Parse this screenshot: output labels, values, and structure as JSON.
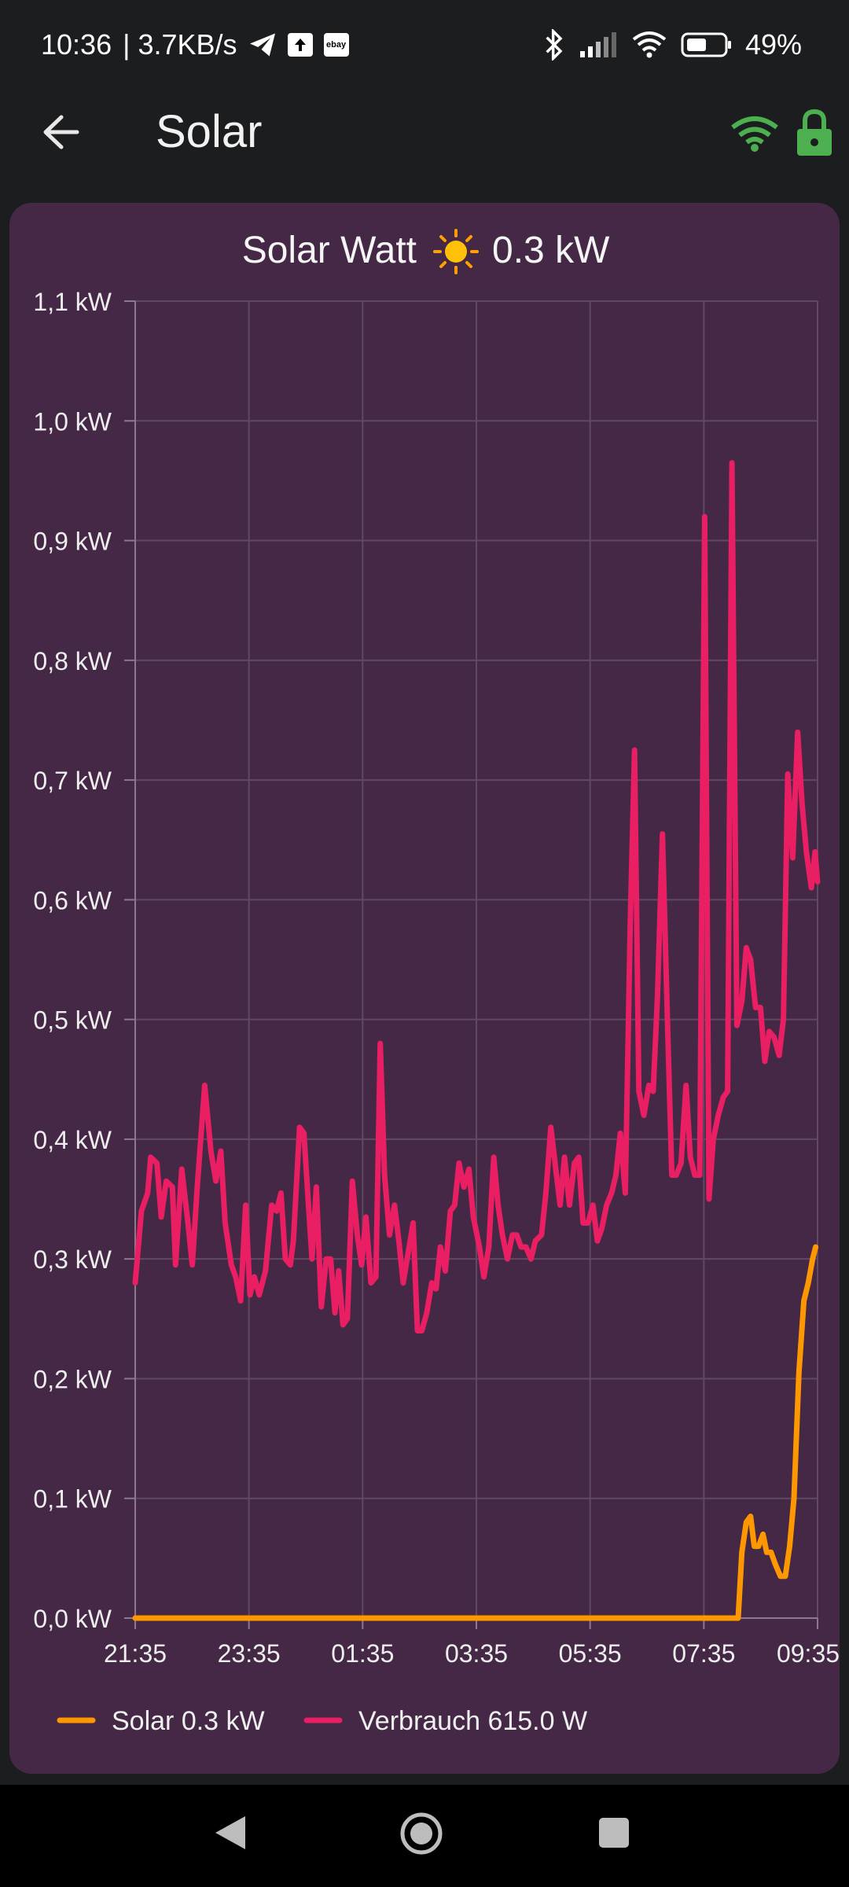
{
  "status_bar": {
    "time": "10:36",
    "speed": "| 3.7KB/s",
    "ebay_label": "ebay",
    "battery": "49%",
    "icons": [
      "telegram-icon",
      "upload-icon",
      "ebay-icon",
      "bluetooth-icon",
      "signal-icon",
      "wifi-icon",
      "battery-icon"
    ]
  },
  "app_bar": {
    "title": "Solar",
    "icons": [
      "back-arrow-icon",
      "wifi-icon",
      "lock-icon"
    ],
    "accent": "#4caf50"
  },
  "chart_title": {
    "prefix": "Solar Watt",
    "icon": "sun-icon",
    "value": "0.3 kW"
  },
  "legend": [
    {
      "label": "Solar 0.3 kW",
      "color": "#ff9800"
    },
    {
      "label": "Verbrauch 615.0 W",
      "color": "#e91e63"
    }
  ],
  "chart_data": {
    "type": "line",
    "title": "Solar Watt ☀ 0.3 kW",
    "xlabel": "",
    "ylabel": "",
    "ylim": [
      0,
      1.1
    ],
    "xlim": [
      "21:35",
      "09:35"
    ],
    "grid": true,
    "legend_position": "bottom-left",
    "y_ticks": [
      "0,0 kW",
      "0,1 kW",
      "0,2 kW",
      "0,3 kW",
      "0,4 kW",
      "0,5 kW",
      "0,6 kW",
      "0,7 kW",
      "0,8 kW",
      "0,9 kW",
      "1,0 kW",
      "1,1 kW"
    ],
    "x_ticks": [
      "21:35",
      "23:35",
      "01:35",
      "03:35",
      "05:35",
      "07:35",
      "09:35"
    ],
    "series": [
      {
        "name": "Verbrauch 615.0 W",
        "color": "#e91e63",
        "points": [
          [
            0,
            0.28
          ],
          [
            0.1,
            0.34
          ],
          [
            0.2,
            0.355
          ],
          [
            0.25,
            0.385
          ],
          [
            0.35,
            0.38
          ],
          [
            0.42,
            0.335
          ],
          [
            0.5,
            0.365
          ],
          [
            0.6,
            0.36
          ],
          [
            0.65,
            0.295
          ],
          [
            0.75,
            0.375
          ],
          [
            0.85,
            0.33
          ],
          [
            0.92,
            0.295
          ],
          [
            1.0,
            0.36
          ],
          [
            1.12,
            0.445
          ],
          [
            1.22,
            0.39
          ],
          [
            1.3,
            0.365
          ],
          [
            1.38,
            0.39
          ],
          [
            1.45,
            0.33
          ],
          [
            1.55,
            0.295
          ],
          [
            1.62,
            0.285
          ],
          [
            1.7,
            0.265
          ],
          [
            1.78,
            0.345
          ],
          [
            1.85,
            0.27
          ],
          [
            1.92,
            0.285
          ],
          [
            2.0,
            0.27
          ],
          [
            2.1,
            0.29
          ],
          [
            2.2,
            0.345
          ],
          [
            2.28,
            0.34
          ],
          [
            2.35,
            0.355
          ],
          [
            2.42,
            0.3
          ],
          [
            2.5,
            0.295
          ],
          [
            2.55,
            0.315
          ],
          [
            2.65,
            0.41
          ],
          [
            2.72,
            0.405
          ],
          [
            2.8,
            0.34
          ],
          [
            2.85,
            0.3
          ],
          [
            2.92,
            0.36
          ],
          [
            3.0,
            0.26
          ],
          [
            3.08,
            0.3
          ],
          [
            3.15,
            0.3
          ],
          [
            3.22,
            0.255
          ],
          [
            3.28,
            0.29
          ],
          [
            3.35,
            0.245
          ],
          [
            3.42,
            0.25
          ],
          [
            3.5,
            0.365
          ],
          [
            3.58,
            0.32
          ],
          [
            3.65,
            0.295
          ],
          [
            3.72,
            0.335
          ],
          [
            3.8,
            0.28
          ],
          [
            3.88,
            0.285
          ],
          [
            3.95,
            0.48
          ],
          [
            4.02,
            0.37
          ],
          [
            4.1,
            0.32
          ],
          [
            4.18,
            0.345
          ],
          [
            4.25,
            0.315
          ],
          [
            4.32,
            0.28
          ],
          [
            4.4,
            0.305
          ],
          [
            4.48,
            0.33
          ],
          [
            4.55,
            0.24
          ],
          [
            4.62,
            0.24
          ],
          [
            4.7,
            0.255
          ],
          [
            4.78,
            0.28
          ],
          [
            4.85,
            0.275
          ],
          [
            4.92,
            0.31
          ],
          [
            5.0,
            0.29
          ],
          [
            5.08,
            0.34
          ],
          [
            5.15,
            0.345
          ],
          [
            5.22,
            0.38
          ],
          [
            5.3,
            0.36
          ],
          [
            5.38,
            0.375
          ],
          [
            5.45,
            0.335
          ],
          [
            5.55,
            0.31
          ],
          [
            5.62,
            0.285
          ],
          [
            5.7,
            0.31
          ],
          [
            5.78,
            0.385
          ],
          [
            5.85,
            0.345
          ],
          [
            5.92,
            0.32
          ],
          [
            6.0,
            0.3
          ],
          [
            6.08,
            0.32
          ],
          [
            6.15,
            0.32
          ],
          [
            6.22,
            0.31
          ],
          [
            6.3,
            0.31
          ],
          [
            6.38,
            0.3
          ],
          [
            6.45,
            0.315
          ],
          [
            6.55,
            0.32
          ],
          [
            6.62,
            0.355
          ],
          [
            6.7,
            0.41
          ],
          [
            6.78,
            0.375
          ],
          [
            6.85,
            0.345
          ],
          [
            6.92,
            0.385
          ],
          [
            7.0,
            0.345
          ],
          [
            7.08,
            0.38
          ],
          [
            7.15,
            0.385
          ],
          [
            7.22,
            0.33
          ],
          [
            7.3,
            0.33
          ],
          [
            7.38,
            0.345
          ],
          [
            7.45,
            0.315
          ],
          [
            7.52,
            0.325
          ],
          [
            7.6,
            0.345
          ],
          [
            7.68,
            0.355
          ],
          [
            7.75,
            0.37
          ],
          [
            7.82,
            0.405
          ],
          [
            7.9,
            0.355
          ],
          [
            7.98,
            0.58
          ],
          [
            8.05,
            0.725
          ],
          [
            8.12,
            0.44
          ],
          [
            8.2,
            0.42
          ],
          [
            8.28,
            0.445
          ],
          [
            8.35,
            0.44
          ],
          [
            8.42,
            0.52
          ],
          [
            8.5,
            0.655
          ],
          [
            8.58,
            0.5
          ],
          [
            8.65,
            0.37
          ],
          [
            8.72,
            0.37
          ],
          [
            8.8,
            0.38
          ],
          [
            8.88,
            0.445
          ],
          [
            8.95,
            0.385
          ],
          [
            9.02,
            0.37
          ],
          [
            9.1,
            0.37
          ],
          [
            9.18,
            0.92
          ],
          [
            9.25,
            0.35
          ],
          [
            9.32,
            0.4
          ],
          [
            9.4,
            0.42
          ],
          [
            9.48,
            0.435
          ],
          [
            9.55,
            0.44
          ],
          [
            9.62,
            0.965
          ],
          [
            9.7,
            0.495
          ],
          [
            9.78,
            0.515
          ],
          [
            9.85,
            0.56
          ],
          [
            9.92,
            0.55
          ],
          [
            10.0,
            0.51
          ],
          [
            10.08,
            0.51
          ],
          [
            10.15,
            0.465
          ],
          [
            10.22,
            0.49
          ],
          [
            10.3,
            0.485
          ],
          [
            10.38,
            0.47
          ],
          [
            10.45,
            0.5
          ],
          [
            10.52,
            0.705
          ],
          [
            10.6,
            0.635
          ],
          [
            10.68,
            0.74
          ],
          [
            10.75,
            0.68
          ],
          [
            10.82,
            0.64
          ],
          [
            10.9,
            0.61
          ],
          [
            10.96,
            0.64
          ],
          [
            11.0,
            0.615
          ]
        ]
      },
      {
        "name": "Solar 0.3 kW",
        "color": "#ff9800",
        "points": [
          [
            0,
            0.0
          ],
          [
            9.6,
            0.0
          ],
          [
            9.72,
            0.0
          ],
          [
            9.78,
            0.055
          ],
          [
            9.85,
            0.08
          ],
          [
            9.92,
            0.085
          ],
          [
            9.98,
            0.06
          ],
          [
            10.05,
            0.06
          ],
          [
            10.12,
            0.07
          ],
          [
            10.18,
            0.055
          ],
          [
            10.25,
            0.055
          ],
          [
            10.32,
            0.045
          ],
          [
            10.4,
            0.035
          ],
          [
            10.48,
            0.035
          ],
          [
            10.55,
            0.06
          ],
          [
            10.62,
            0.1
          ],
          [
            10.7,
            0.205
          ],
          [
            10.78,
            0.265
          ],
          [
            10.85,
            0.28
          ],
          [
            10.92,
            0.3
          ],
          [
            10.97,
            0.31
          ]
        ]
      }
    ]
  }
}
